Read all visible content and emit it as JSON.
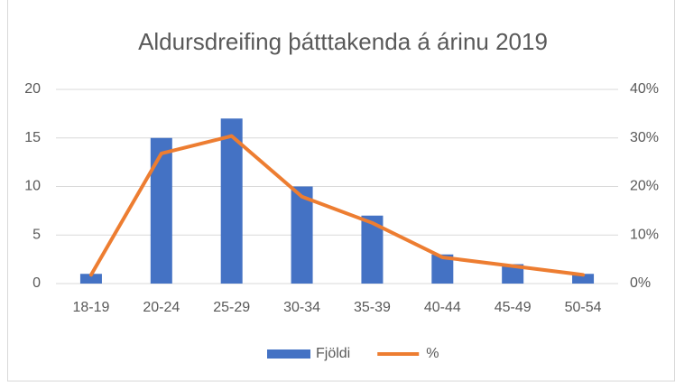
{
  "chart_data": {
    "type": "bar_line",
    "title": "Aldursdreifing þátttakenda á árinu 2019",
    "categories": [
      "18-19",
      "20-24",
      "25-29",
      "30-34",
      "35-39",
      "40-44",
      "45-49",
      "50-54"
    ],
    "series": [
      {
        "name": "Fjöldi",
        "color": "#4472c4",
        "type": "bar",
        "values": [
          1,
          15,
          17,
          10,
          7,
          3,
          2,
          1
        ]
      },
      {
        "name": "%",
        "color": "#ed7d31",
        "type": "line",
        "axis": "y2",
        "values": [
          1.8,
          26.8,
          30.4,
          17.9,
          12.5,
          5.4,
          3.6,
          1.8
        ]
      }
    ],
    "ylim": [
      0,
      20
    ],
    "yticks": [
      0,
      5,
      10,
      15,
      20
    ],
    "y2lim": [
      0,
      40
    ],
    "y2ticks": [
      {
        "value": 0,
        "label": "0%"
      },
      {
        "value": 10,
        "label": "10%"
      },
      {
        "value": 20,
        "label": "20%"
      },
      {
        "value": 30,
        "label": "30%"
      },
      {
        "value": 40,
        "label": "40%"
      }
    ],
    "grid": true,
    "legend": "bottom"
  }
}
